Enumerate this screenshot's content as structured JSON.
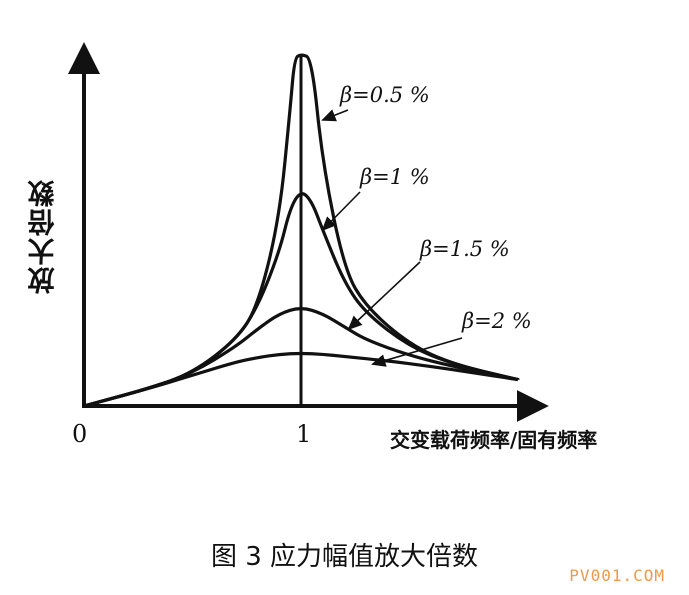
{
  "chart_data": {
    "type": "line",
    "title": "",
    "ylabel": "放大倍数",
    "xlabel": "交变载荷频率/固有频率",
    "x_ticks": [
      "0",
      "1"
    ],
    "xlim": [
      0,
      2.05
    ],
    "ylim": [
      0,
      17
    ],
    "grid": false,
    "series": [
      {
        "name": "β=0.5 %",
        "x": [
          0,
          0.3,
          0.5,
          0.7,
          0.8,
          0.9,
          0.95,
          0.97,
          1.0,
          1.05,
          1.1,
          1.2,
          1.3,
          1.5,
          1.7,
          2.0
        ],
        "y": [
          0,
          0.8,
          1.5,
          3.0,
          4.5,
          8.5,
          13.5,
          15.8,
          16.0,
          15.8,
          11.0,
          6.2,
          4.5,
          2.8,
          1.9,
          1.2
        ]
      },
      {
        "name": "β=1 %",
        "x": [
          0,
          0.3,
          0.5,
          0.7,
          0.8,
          0.9,
          0.95,
          1.0,
          1.05,
          1.1,
          1.2,
          1.3,
          1.5,
          1.7,
          2.0
        ],
        "y": [
          0,
          0.8,
          1.5,
          3.0,
          4.5,
          7.0,
          9.0,
          9.8,
          9.3,
          8.0,
          5.6,
          4.2,
          2.7,
          1.9,
          1.2
        ]
      },
      {
        "name": "β=1.5 %",
        "x": [
          0,
          0.3,
          0.5,
          0.7,
          0.8,
          0.9,
          1.0,
          1.1,
          1.2,
          1.3,
          1.5,
          1.7,
          2.0
        ],
        "y": [
          0,
          0.8,
          1.5,
          2.7,
          3.5,
          4.2,
          4.5,
          4.2,
          3.6,
          3.0,
          2.3,
          1.8,
          1.2
        ]
      },
      {
        "name": "β=2 %",
        "x": [
          0,
          0.3,
          0.5,
          0.7,
          0.8,
          0.9,
          1.0,
          1.1,
          1.2,
          1.4,
          1.6,
          1.8,
          2.0
        ],
        "y": [
          0,
          0.8,
          1.4,
          2.0,
          2.2,
          2.35,
          2.4,
          2.35,
          2.25,
          2.05,
          1.8,
          1.5,
          1.2
        ]
      }
    ]
  },
  "figure": {
    "caption": "图 3    应力幅值放大倍数",
    "watermark": "PV001.COM"
  }
}
